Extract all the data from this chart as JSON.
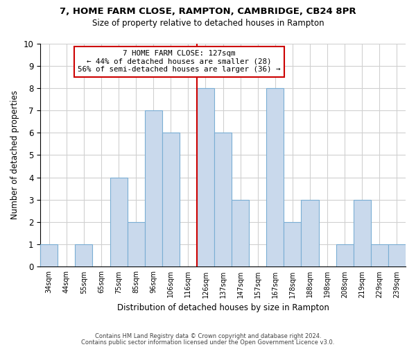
{
  "title": "7, HOME FARM CLOSE, RAMPTON, CAMBRIDGE, CB24 8PR",
  "subtitle": "Size of property relative to detached houses in Rampton",
  "xlabel": "Distribution of detached houses by size in Rampton",
  "ylabel": "Number of detached properties",
  "bin_labels": [
    "34sqm",
    "44sqm",
    "55sqm",
    "65sqm",
    "75sqm",
    "85sqm",
    "96sqm",
    "106sqm",
    "116sqm",
    "126sqm",
    "137sqm",
    "147sqm",
    "157sqm",
    "167sqm",
    "178sqm",
    "188sqm",
    "198sqm",
    "208sqm",
    "219sqm",
    "229sqm",
    "239sqm"
  ],
  "bar_heights": [
    1,
    0,
    1,
    0,
    4,
    2,
    7,
    6,
    0,
    8,
    6,
    3,
    0,
    8,
    2,
    3,
    0,
    1,
    3,
    1,
    1
  ],
  "bar_color": "#c9d9ec",
  "bar_edge_color": "#7aaed4",
  "grid_color": "#d0d0d0",
  "vline_color": "#cc0000",
  "annotation_title": "7 HOME FARM CLOSE: 127sqm",
  "annotation_line1": "← 44% of detached houses are smaller (28)",
  "annotation_line2": "56% of semi-detached houses are larger (36) →",
  "annotation_box_color": "#cc0000",
  "annotation_bg": "#ffffff",
  "ylim": [
    0,
    10
  ],
  "yticks": [
    0,
    1,
    2,
    3,
    4,
    5,
    6,
    7,
    8,
    9,
    10
  ],
  "footnote1": "Contains HM Land Registry data © Crown copyright and database right 2024.",
  "footnote2": "Contains public sector information licensed under the Open Government Licence v3.0."
}
